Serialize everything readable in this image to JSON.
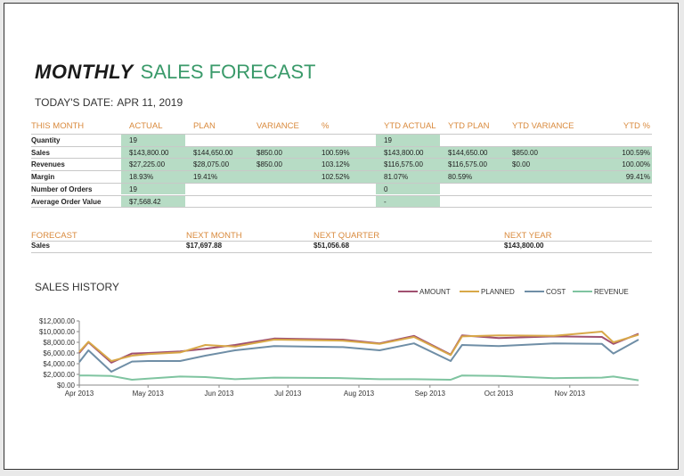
{
  "title": {
    "bold": "MONTHLY",
    "light": "SALES FORECAST"
  },
  "date": {
    "label": "TODAY'S DATE:",
    "value": "APR 11, 2019"
  },
  "table": {
    "headers": [
      "THIS MONTH",
      "ACTUAL",
      "PLAN",
      "VARIANCE",
      "%",
      "YTD ACTUAL",
      "YTD PLAN",
      "YTD VARIANCE",
      "YTD %"
    ],
    "rows": [
      {
        "label": "Quantity",
        "cells": [
          "19",
          "",
          "",
          "",
          "19",
          "",
          "",
          ""
        ]
      },
      {
        "label": "Sales",
        "cells": [
          "$143,800.00",
          "$144,650.00",
          "$850.00",
          "100.59%",
          "$143,800.00",
          "$144,650.00",
          "$850.00",
          "100.59%"
        ]
      },
      {
        "label": "Revenues",
        "cells": [
          "$27,225.00",
          "$28,075.00",
          "$850.00",
          "103.12%",
          "$116,575.00",
          "$116,575.00",
          "$0.00",
          "100.00%"
        ]
      },
      {
        "label": "Margin",
        "cells": [
          "18.93%",
          "19.41%",
          "",
          "102.52%",
          "81.07%",
          "80.59%",
          "",
          "99.41%"
        ]
      },
      {
        "label": "Number of Orders",
        "cells": [
          "19",
          "",
          "",
          "",
          "0",
          "",
          "",
          ""
        ]
      },
      {
        "label": "Average Order Value",
        "cells": [
          "$7,568.42",
          "",
          "",
          "",
          "-",
          "",
          "",
          ""
        ]
      }
    ]
  },
  "forecast": {
    "headers": [
      "FORECAST",
      "NEXT MONTH",
      "NEXT QUARTER",
      "NEXT YEAR"
    ],
    "row_label": "Sales",
    "values": [
      "$17,697.88",
      "$51,056.68",
      "$143,800.00"
    ]
  },
  "history_title": "SALES HISTORY",
  "chart_data": {
    "type": "line",
    "x": [
      "2013-04-01",
      "2013-04-05",
      "2013-04-15",
      "2013-04-24",
      "2013-05-01",
      "2013-05-15",
      "2013-05-26",
      "2013-06-08",
      "2013-06-25",
      "2013-07-25",
      "2013-08-10",
      "2013-08-25",
      "2013-09-10",
      "2013-09-15",
      "2013-10-01",
      "2013-10-25",
      "2013-11-15",
      "2013-11-20",
      "2013-12-01"
    ],
    "series": [
      {
        "name": "AMOUNT",
        "color": "#a05070",
        "values": [
          6000,
          8000,
          4200,
          5900,
          6000,
          6300,
          6800,
          7500,
          8700,
          8500,
          7800,
          9200,
          5700,
          9300,
          8800,
          9100,
          9000,
          7700,
          9600
        ]
      },
      {
        "name": "PLANNED",
        "color": "#d8a848",
        "values": [
          6200,
          8100,
          4500,
          5500,
          5800,
          6100,
          7500,
          7200,
          8500,
          8300,
          7700,
          9000,
          5600,
          9100,
          9300,
          9200,
          10000,
          8000,
          9400
        ]
      },
      {
        "name": "COST",
        "color": "#6f8ea6",
        "values": [
          4300,
          6500,
          2500,
          4400,
          4500,
          4500,
          5500,
          6500,
          7300,
          7100,
          6500,
          7800,
          4500,
          7500,
          7300,
          7800,
          7700,
          5900,
          8500
        ]
      },
      {
        "name": "REVENUE",
        "color": "#7fc4a0",
        "values": [
          1800,
          1800,
          1700,
          1000,
          1200,
          1600,
          1500,
          1100,
          1400,
          1300,
          1100,
          1100,
          1000,
          1800,
          1700,
          1300,
          1400,
          1600,
          900
        ]
      }
    ],
    "y_ticks": [
      "$0.00",
      "$2,000.00",
      "$4,000.00",
      "$6,000.00",
      "$8,000.00",
      "$10,000.00",
      "$12,000.00"
    ],
    "x_ticks": [
      "Apr 2013",
      "May 2013",
      "Jun 2013",
      "Jul 2013",
      "Aug 2013",
      "Sep 2013",
      "Oct 2013",
      "Nov 2013"
    ],
    "ylim": [
      0,
      12000
    ],
    "xlim": [
      "2013-04-01",
      "2013-12-01"
    ],
    "legend_position": "top-right",
    "grid": false
  }
}
